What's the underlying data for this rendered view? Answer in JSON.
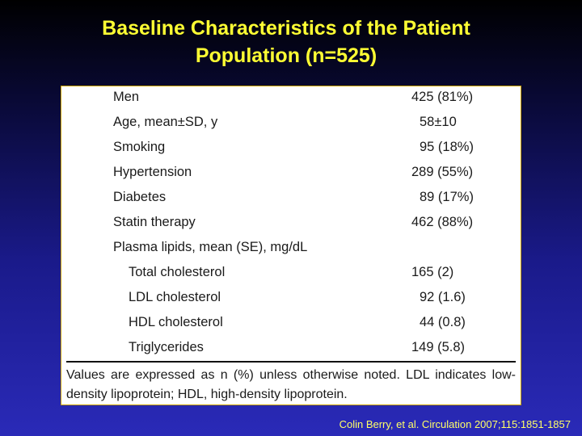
{
  "slide": {
    "title_line1": "Baseline Characteristics of the Patient",
    "title_line2": "Population (n=525)",
    "citation": "Colin Berry, et al. Circulation 2007;115:1851-1857"
  },
  "table": {
    "rows": [
      {
        "label": "Men",
        "value": "425 (81%)"
      },
      {
        "label": "Age, mean±SD, y",
        "value": "58±10"
      },
      {
        "label": "Smoking",
        "value": "95 (18%)"
      },
      {
        "label": "Hypertension",
        "value": "289 (55%)"
      },
      {
        "label": "Diabetes",
        "value": "89 (17%)"
      },
      {
        "label": "Statin therapy",
        "value": "462 (88%)"
      },
      {
        "label": "Plasma lipids, mean (SE), mg/dL",
        "value": ""
      },
      {
        "label": "Total cholesterol",
        "value": "165 (2)"
      },
      {
        "label": "LDL cholesterol",
        "value": "92 (1.6)"
      },
      {
        "label": "HDL cholesterol",
        "value": "44 (0.8)"
      },
      {
        "label": "Triglycerides",
        "value": "149 (5.8)"
      }
    ],
    "footnote": "Values are expressed as n (%) unless otherwise noted. LDL indicates low-density lipoprotein; HDL, high-density lipoprotein."
  }
}
